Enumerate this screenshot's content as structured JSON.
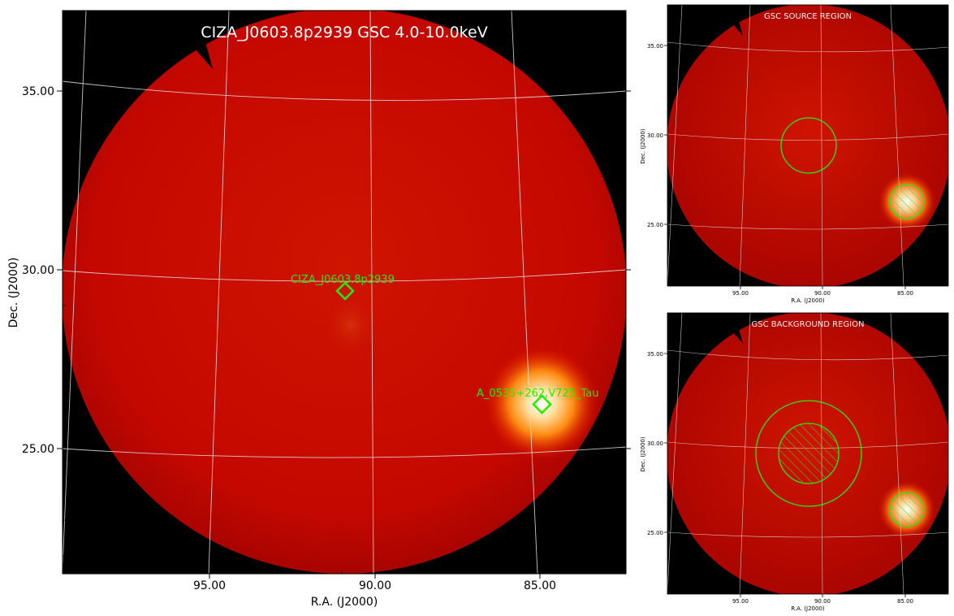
{
  "main_panel": {
    "title": "CIZA_J0603.8p2939 GSC 4.0-10.0keV",
    "xlabel": "R.A. (J2000)",
    "ylabel": "Dec. (J2000)",
    "x_ticks": [
      "95.00",
      "90.00",
      "85.00"
    ],
    "y_ticks": [
      "35.00",
      "30.00",
      "25.00"
    ],
    "sources": [
      {
        "label": "CIZA_J0603.8p2939",
        "ra": 91.0,
        "dec": 29.4
      },
      {
        "label": "A_0535+262,V725_Tau",
        "ra": 85.0,
        "dec": 26.3
      }
    ],
    "colors": {
      "background": "#000000",
      "disk": "#c80800",
      "marker": "#22ee00",
      "grid": "#dddddd",
      "title": "#ffffff"
    }
  },
  "source_panel": {
    "title": "GSC SOURCE REGION",
    "xlabel": "R.A. (J2000)",
    "ylabel": "Dec. (J2000)",
    "x_ticks": [
      "95.00",
      "90.00",
      "85.00"
    ],
    "y_ticks": [
      "35.00",
      "30.00",
      "25.00"
    ]
  },
  "background_panel": {
    "title": "GSC BACKGROUND REGION",
    "xlabel": "R.A. (J2000)",
    "ylabel": "Dec. (J2000)",
    "x_ticks": [
      "95.00",
      "90.00",
      "85.00"
    ],
    "y_ticks": [
      "35.00",
      "30.00",
      "25.00"
    ]
  }
}
